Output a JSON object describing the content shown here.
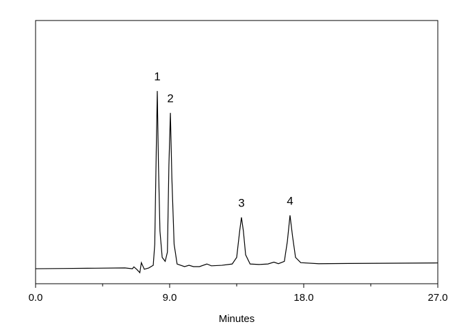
{
  "chart_data": {
    "type": "line",
    "xlabel": "Minutes",
    "x": [
      0,
      2,
      4,
      6,
      6.5,
      6.6,
      6.8,
      7.0,
      7.1,
      7.3,
      7.6,
      7.9,
      8.0,
      8.1,
      8.17,
      8.25,
      8.35,
      8.5,
      8.7,
      8.85,
      8.95,
      9.05,
      9.15,
      9.3,
      9.5,
      10,
      10.3,
      10.6,
      11,
      11.5,
      11.8,
      12.5,
      13.2,
      13.5,
      13.7,
      13.82,
      13.95,
      14.1,
      14.4,
      15,
      15.6,
      16,
      16.3,
      16.7,
      16.9,
      17.08,
      17.25,
      17.45,
      17.8,
      19,
      21,
      24,
      27
    ],
    "series": [
      {
        "color": "#000000",
        "values": [
          5.7,
          5.8,
          5.9,
          6.0,
          5.7,
          6.4,
          5.4,
          4.2,
          8.0,
          5.5,
          6.0,
          7.0,
          15,
          50,
          73.2,
          45,
          20,
          10,
          8.5,
          12,
          45,
          64.9,
          40,
          15,
          7.5,
          6.5,
          7.0,
          6.5,
          6.5,
          7.5,
          6.8,
          7.0,
          7.5,
          10,
          20,
          25.2,
          20,
          11,
          7.5,
          7.3,
          7.5,
          8.2,
          7.6,
          8.5,
          16,
          26,
          18,
          10,
          8,
          7.6,
          7.7,
          7.8,
          7.9
        ]
      }
    ],
    "annotations": [
      {
        "text": "1",
        "x": 8.17
      },
      {
        "text": "2",
        "x": 9.05
      },
      {
        "text": "3",
        "x": 13.82
      },
      {
        "text": "4",
        "x": 17.08
      }
    ],
    "xlim": [
      0,
      27
    ],
    "xticks": [
      {
        "value": 0,
        "label": "0.0"
      },
      {
        "value": 9,
        "label": "9.0"
      },
      {
        "value": 18,
        "label": "18.0"
      },
      {
        "value": 27,
        "label": "27.0"
      }
    ],
    "xminorticks": [
      4.5,
      13.5,
      22.5
    ],
    "ylim": [
      0,
      100
    ],
    "grid": false
  }
}
